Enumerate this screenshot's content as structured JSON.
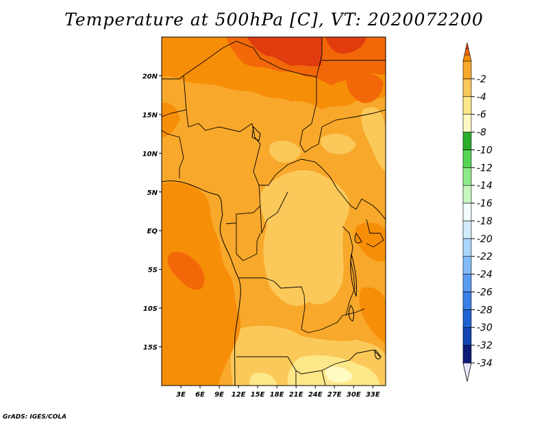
{
  "title": "Temperature at 500hPa [C], VT: 2020072200",
  "footer": "GrADS: IGES/COLA",
  "map": {
    "lon_range": [
      0,
      35
    ],
    "lat_range": [
      -20,
      25
    ],
    "lon_ticks": [
      "3E",
      "6E",
      "9E",
      "12E",
      "15E",
      "18E",
      "21E",
      "24E",
      "27E",
      "30E",
      "33E"
    ],
    "lat_ticks": [
      "20N",
      "15N",
      "10N",
      "5N",
      "EQ",
      "5S",
      "10S",
      "15S"
    ]
  },
  "colorbar": {
    "colors": [
      "#e6e6fa",
      "#0c1c78",
      "#1345b4",
      "#1e64d2",
      "#3a80e6",
      "#5a9cf0",
      "#82bbf7",
      "#a9d6fc",
      "#d3ecfd",
      "#f0fbff",
      "#c7f6c1",
      "#8ee98a",
      "#54d654",
      "#29ad29",
      "#fff9c2",
      "#fde789",
      "#fbc95a",
      "#f8a82a",
      "#f78e07",
      "#f26808",
      "#e03c0e"
    ],
    "labels": [
      "-34",
      "-32",
      "-30",
      "-28",
      "-26",
      "-24",
      "-22",
      "-20",
      "-18",
      "-16",
      "-14",
      "-12",
      "-10",
      "-8",
      "-6",
      "-4",
      "-2"
    ]
  }
}
